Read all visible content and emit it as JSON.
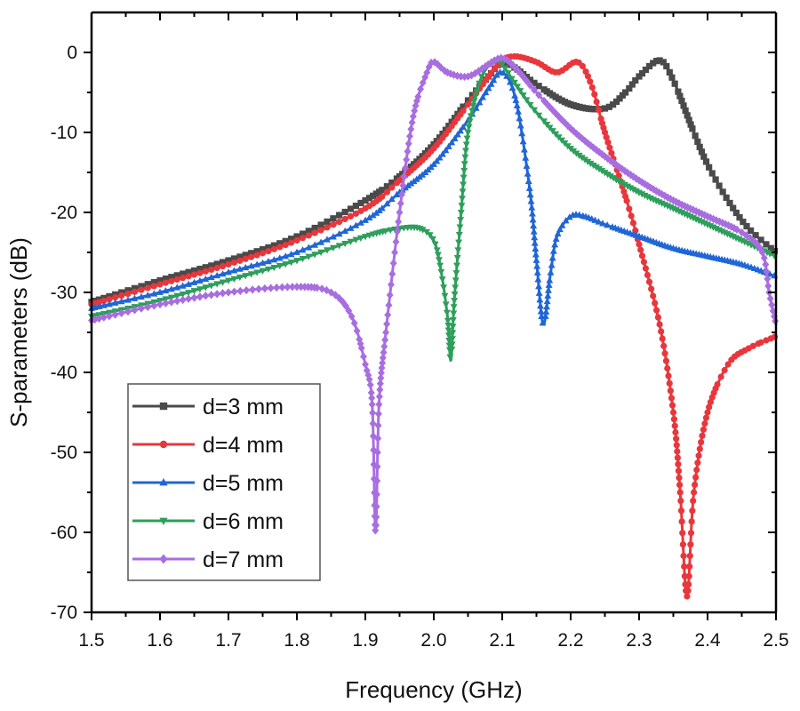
{
  "chart_data": {
    "type": "line",
    "title": "",
    "xlabel": "Frequency (GHz)",
    "ylabel": "S-parameters (dB)",
    "xlim": [
      1.5,
      2.5
    ],
    "ylim": [
      -70,
      5
    ],
    "xticks": [
      1.5,
      1.6,
      1.7,
      1.8,
      1.9,
      2.0,
      2.1,
      2.2,
      2.3,
      2.4,
      2.5
    ],
    "xtick_labels": [
      "1.5",
      "1.6",
      "1.7",
      "1.8",
      "1.9",
      "2.0",
      "2.1",
      "2.2",
      "2.3",
      "2.4",
      "2.5"
    ],
    "yticks": [
      0,
      -10,
      -20,
      -30,
      -40,
      -50,
      -60,
      -70
    ],
    "ytick_labels": [
      "0",
      "-10",
      "-20",
      "-30",
      "-40",
      "-50",
      "-60",
      "-70"
    ],
    "grid": false,
    "legend_position": "bottom-left",
    "series": [
      {
        "name": "d=3 mm",
        "color": "#4a4a4a",
        "marker": "square",
        "x": [
          1.5,
          1.6,
          1.7,
          1.8,
          1.9,
          1.95,
          2.0,
          2.05,
          2.08,
          2.1,
          2.12,
          2.15,
          2.2,
          2.25,
          2.28,
          2.3,
          2.33,
          2.35,
          2.38,
          2.4,
          2.43,
          2.46,
          2.5
        ],
        "y": [
          -31.2,
          -28.5,
          -26,
          -23,
          -18.5,
          -15.5,
          -11.5,
          -6,
          -3,
          -1.2,
          -2,
          -4,
          -6.5,
          -7,
          -5,
          -3,
          -1,
          -3.5,
          -10,
          -14,
          -18.5,
          -22,
          -25
        ]
      },
      {
        "name": "d=4 mm",
        "color": "#e8373c",
        "marker": "circle",
        "x": [
          1.5,
          1.6,
          1.7,
          1.8,
          1.9,
          1.95,
          2.0,
          2.05,
          2.08,
          2.1,
          2.12,
          2.15,
          2.18,
          2.21,
          2.23,
          2.25,
          2.28,
          2.3,
          2.33,
          2.35,
          2.36,
          2.37,
          2.38,
          2.4,
          2.43,
          2.46,
          2.5
        ],
        "y": [
          -31.5,
          -29,
          -26.5,
          -23.5,
          -19.5,
          -16,
          -12,
          -6.5,
          -3,
          -1,
          -0.5,
          -1.2,
          -2.5,
          -1.2,
          -4,
          -10,
          -18,
          -24,
          -34,
          -45,
          -55,
          -68,
          -55,
          -45,
          -39,
          -37,
          -35.5
        ]
      },
      {
        "name": "d=5 mm",
        "color": "#1f66d6",
        "marker": "triangle-up",
        "x": [
          1.5,
          1.6,
          1.7,
          1.8,
          1.9,
          1.95,
          2.0,
          2.05,
          2.08,
          2.1,
          2.12,
          2.14,
          2.15,
          2.16,
          2.17,
          2.18,
          2.2,
          2.22,
          2.25,
          2.3,
          2.35,
          2.4,
          2.45,
          2.5
        ],
        "y": [
          -32,
          -30,
          -27.5,
          -25,
          -21,
          -17.5,
          -14,
          -8.5,
          -4.5,
          -2.5,
          -6,
          -17,
          -26,
          -34,
          -28,
          -23,
          -20.5,
          -20.5,
          -21.5,
          -23,
          -24.5,
          -25.5,
          -26.5,
          -28
        ]
      },
      {
        "name": "d=6 mm",
        "color": "#2e9e5b",
        "marker": "triangle-down",
        "x": [
          1.5,
          1.6,
          1.7,
          1.8,
          1.9,
          1.95,
          1.98,
          2.0,
          2.01,
          2.02,
          2.025,
          2.03,
          2.04,
          2.05,
          2.07,
          2.09,
          2.1,
          2.12,
          2.15,
          2.2,
          2.25,
          2.3,
          2.35,
          2.4,
          2.45,
          2.5
        ],
        "y": [
          -33,
          -31,
          -28.5,
          -26,
          -23,
          -22,
          -22,
          -23.5,
          -27,
          -33,
          -38.5,
          -31,
          -20,
          -10,
          -3,
          -1,
          -1.5,
          -4,
          -7.5,
          -12,
          -15,
          -17.5,
          -19.5,
          -21.5,
          -23.5,
          -25.5
        ]
      },
      {
        "name": "d=7 mm",
        "color": "#a86ee0",
        "marker": "diamond",
        "x": [
          1.5,
          1.6,
          1.7,
          1.8,
          1.85,
          1.88,
          1.9,
          1.91,
          1.915,
          1.92,
          1.93,
          1.95,
          1.97,
          1.99,
          2.0,
          2.02,
          2.05,
          2.08,
          2.1,
          2.12,
          2.15,
          2.2,
          2.25,
          2.3,
          2.35,
          2.4,
          2.45,
          2.48,
          2.49,
          2.5
        ],
        "y": [
          -33.5,
          -31.5,
          -30,
          -29.3,
          -30,
          -33,
          -39,
          -44,
          -60,
          -44,
          -35,
          -20,
          -8,
          -2.5,
          -1.2,
          -2.5,
          -3,
          -1.5,
          -0.7,
          -2,
          -5,
          -9.5,
          -13,
          -16,
          -18.5,
          -20.5,
          -22.5,
          -25,
          -30,
          -34
        ]
      }
    ]
  }
}
